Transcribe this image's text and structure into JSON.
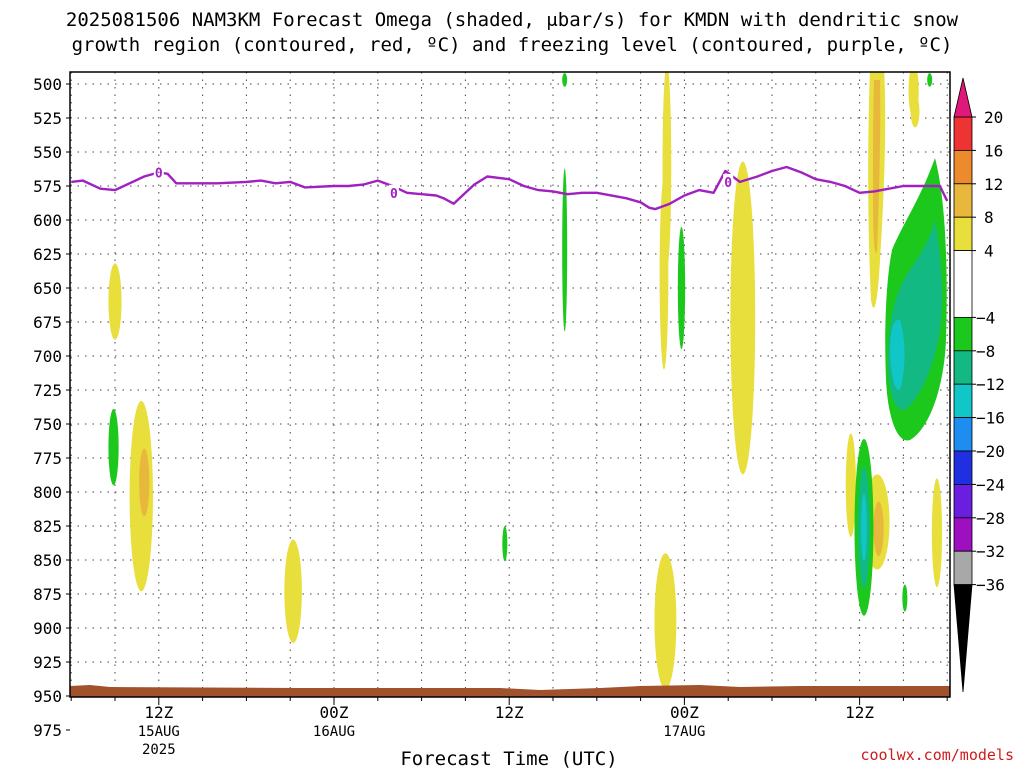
{
  "title": {
    "line1": "2025081506 NAM3KM Forecast Omega (shaded, μbar/s) for KMDN with dendritic snow",
    "line2": "growth region (contoured, red, ºC) and freezing level (contoured, purple, ºC)"
  },
  "credit": "coolwx.com/models",
  "chart_data": {
    "type": "heatmap",
    "xlabel": "Forecast Time (UTC)",
    "x_ticks": [
      {
        "hour": 6,
        "label": [
          "12Z",
          "15AUG",
          "2025"
        ]
      },
      {
        "hour": 18,
        "label": [
          "00Z",
          "16AUG"
        ]
      },
      {
        "hour": 30,
        "label": [
          "12Z"
        ]
      },
      {
        "hour": 42,
        "label": [
          "00Z",
          "17AUG"
        ]
      },
      {
        "hour": 54,
        "label": [
          "12Z"
        ]
      }
    ],
    "x_range_hours": [
      0,
      60
    ],
    "y_range_hPa": [
      500,
      985
    ],
    "y_ticks": [
      500,
      525,
      550,
      575,
      600,
      625,
      650,
      675,
      700,
      725,
      750,
      775,
      800,
      825,
      850,
      875,
      900,
      925,
      950,
      975
    ],
    "grid": true,
    "colorbar": {
      "levels": [
        20,
        16,
        12,
        8,
        4,
        -4,
        -8,
        -12,
        -16,
        -20,
        -24,
        -28,
        -32,
        -36
      ],
      "colors": {
        "16_20": "#ee3333",
        "12_16": "#ec8a2c",
        "8_12": "#e8b83c",
        "4_8": "#e8de3c",
        "-4_4": "#ffffff",
        "-8_-4": "#1cc81c",
        "-12_-8": "#13b982",
        "-16_-12": "#10c6c6",
        "-20_-16": "#1d8ef0",
        "-24_-20": "#2030e0",
        "-28_-24": "#6a1ee0",
        "-32_-28": "#9c10c0",
        "-36_-32": "#a8a8a8",
        "top_arrow": "#e0187a",
        "bottom_arrow": "#000000"
      }
    },
    "freezing_level": {
      "color": "#a020c0",
      "label": "0",
      "points": [
        [
          0,
          572
        ],
        [
          0.8,
          571
        ],
        [
          2,
          577
        ],
        [
          3,
          578
        ],
        [
          4,
          573
        ],
        [
          5,
          568
        ],
        [
          6,
          565
        ],
        [
          6.6,
          566
        ],
        [
          7.2,
          573
        ],
        [
          10,
          573
        ],
        [
          12,
          572
        ],
        [
          13,
          571
        ],
        [
          14,
          573
        ],
        [
          15,
          572
        ],
        [
          16,
          576
        ],
        [
          18,
          575
        ],
        [
          19,
          575
        ],
        [
          20,
          574
        ],
        [
          21,
          571
        ],
        [
          22,
          575
        ],
        [
          23,
          580
        ],
        [
          24,
          581
        ],
        [
          25,
          582
        ],
        [
          25.5,
          584
        ],
        [
          26.2,
          588
        ],
        [
          27,
          580
        ],
        [
          27.6,
          574
        ],
        [
          28.5,
          568
        ],
        [
          30,
          570
        ],
        [
          31,
          575
        ],
        [
          32,
          578
        ],
        [
          33,
          579
        ],
        [
          34,
          581
        ],
        [
          35,
          580
        ],
        [
          36,
          580
        ],
        [
          38,
          584
        ],
        [
          39,
          587
        ],
        [
          39.6,
          591
        ],
        [
          40,
          592
        ],
        [
          41,
          588
        ],
        [
          42,
          582
        ],
        [
          43,
          578
        ],
        [
          44,
          580
        ],
        [
          44.8,
          564
        ],
        [
          45.8,
          572
        ],
        [
          47,
          568
        ],
        [
          48,
          564
        ],
        [
          49,
          561
        ],
        [
          50,
          565
        ],
        [
          51,
          570
        ],
        [
          52,
          572
        ],
        [
          53,
          575
        ],
        [
          54,
          580
        ],
        [
          55,
          579
        ],
        [
          56,
          577
        ],
        [
          57,
          575
        ],
        [
          59.5,
          575
        ],
        [
          60,
          586
        ]
      ],
      "label_positions": [
        [
          6,
          565
        ],
        [
          22.1,
          580
        ],
        [
          45,
          572
        ]
      ]
    },
    "omega_regions": [
      {
        "t": 3.0,
        "p": 660,
        "rt": 0.45,
        "rp": 28,
        "value": 4
      },
      {
        "t": 4.8,
        "p": 803,
        "rt": 0.8,
        "rp": 70,
        "value": 4
      },
      {
        "t": 5.0,
        "p": 793,
        "rt": 0.35,
        "rp": 25,
        "value": 8
      },
      {
        "t": 2.9,
        "p": 767,
        "rt": 0.35,
        "rp": 28,
        "value": -4
      },
      {
        "t": 15.2,
        "p": 873,
        "rt": 0.6,
        "rp": 38,
        "value": 4
      },
      {
        "t": 29.7,
        "p": 838,
        "rt": 0.15,
        "rp": 13,
        "value": -4
      },
      {
        "t": 33.8,
        "p": 622,
        "rt": 0.12,
        "rp": 60,
        "value": -4
      },
      {
        "t": 33.8,
        "p": 497,
        "rt": 0.1,
        "rp": 5,
        "value": -4
      },
      {
        "t": 40.8,
        "p": 560,
        "rt": 0.3,
        "rp": 75,
        "value": 4
      },
      {
        "t": 40.6,
        "p": 640,
        "rt": 0.3,
        "rp": 70,
        "value": 4
      },
      {
        "t": 41.8,
        "p": 650,
        "rt": 0.25,
        "rp": 45,
        "value": -4
      },
      {
        "t": 40.7,
        "p": 895,
        "rt": 0.75,
        "rp": 50,
        "value": 4
      },
      {
        "t": 46.0,
        "p": 672,
        "rt": 0.85,
        "rp": 115,
        "value": 4
      },
      {
        "t": 53.4,
        "p": 795,
        "rt": 0.35,
        "rp": 38,
        "value": 4
      },
      {
        "t": 55.2,
        "p": 822,
        "rt": 0.85,
        "rp": 35,
        "value": 4
      },
      {
        "t": 55.3,
        "p": 827,
        "rt": 0.35,
        "rp": 20,
        "value": 8
      },
      {
        "t": 59.3,
        "p": 830,
        "rt": 0.35,
        "rp": 40,
        "value": 4
      },
      {
        "t": 57.1,
        "p": 878,
        "rt": 0.08,
        "rp": 10,
        "value": -4
      },
      {
        "t": 54.8,
        "p": 960,
        "rt": 0.12,
        "rp": 13,
        "value": 4
      },
      {
        "t": 54.3,
        "p": 826,
        "rt": 0.65,
        "rp": 65,
        "value": -4
      },
      {
        "t": 54.3,
        "p": 826,
        "rt": 0.4,
        "rp": 45,
        "value": -8
      },
      {
        "t": 54.3,
        "p": 826,
        "rt": 0.2,
        "rp": 25,
        "value": -12
      },
      {
        "t": 57.7,
        "p": 505,
        "rt": 0.35,
        "rp": 20,
        "value": 4
      },
      {
        "t": 57.8,
        "p": 520,
        "rt": 0.3,
        "rp": 12,
        "value": 4
      },
      {
        "t": 58.8,
        "p": 497,
        "rt": 0.12,
        "rp": 5,
        "value": -4
      }
    ]
  }
}
